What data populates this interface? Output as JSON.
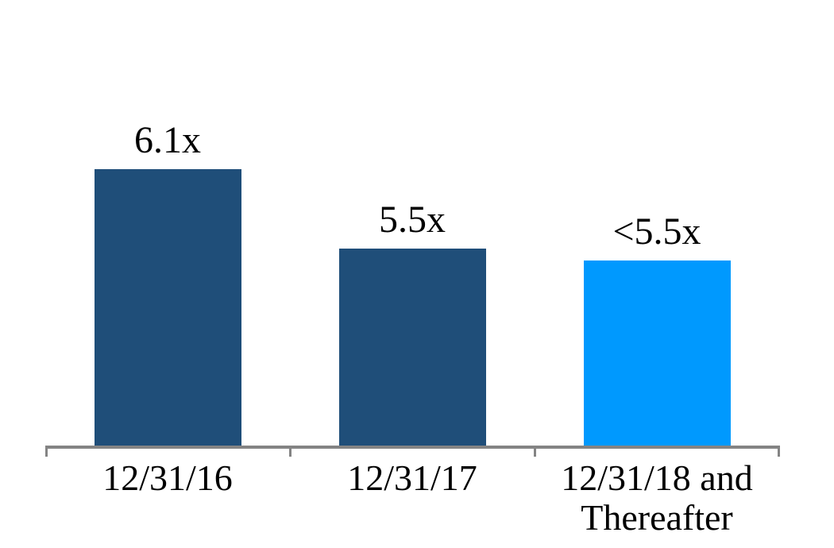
{
  "chart_data": {
    "type": "bar",
    "title": "",
    "xlabel": "",
    "ylabel": "",
    "categories": [
      "12/31/16",
      "12/31/17",
      "12/31/18 and Thereafter"
    ],
    "data_labels": [
      "6.1x",
      "5.5x",
      "<5.5x"
    ],
    "values": [
      6.1,
      5.5,
      5.41
    ],
    "ylim": [
      4.0,
      6.5
    ],
    "grid": false,
    "legend": false,
    "bar_colors": [
      "#1F4E79",
      "#1F4E79",
      "#0099FE"
    ],
    "axis_color": "#848484",
    "label_color": "#000000",
    "background": "#FFFFFF"
  }
}
